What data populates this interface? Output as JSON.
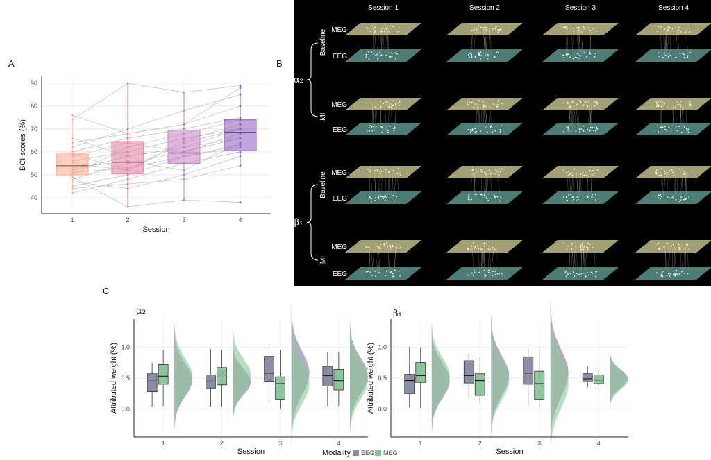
{
  "panels": {
    "a": "A",
    "b": "B",
    "c": "C"
  },
  "colors": {
    "s1": "#f7a58c",
    "s2": "#e07aa0",
    "s3": "#c67dc2",
    "s4": "#8a5bbd",
    "eeg": "#8b8fa3",
    "meg": "#8cc49b",
    "meg_dark": "#6a9e7a",
    "layer_meg": "#d7d79a",
    "layer_eeg": "#5f9c92"
  },
  "chart_data": [
    {
      "id": "A",
      "type": "box",
      "xlabel": "Session",
      "ylabel": "BCI scores (%)",
      "ylim": [
        33,
        93
      ],
      "yticks": [
        40,
        50,
        60,
        70,
        80,
        90
      ],
      "categories": [
        "1",
        "2",
        "3",
        "4"
      ],
      "boxes": [
        {
          "category": "1",
          "q1": 49.5,
          "median": 54,
          "q3": 59.5,
          "whisker_low": 42,
          "whisker_high": 76
        },
        {
          "category": "2",
          "q1": 50.5,
          "median": 55.5,
          "q3": 64.5,
          "whisker_low": 35.5,
          "whisker_high": 90
        },
        {
          "category": "3",
          "q1": 55,
          "median": 59.5,
          "q3": 69.5,
          "whisker_low": 39,
          "whisker_high": 86.5
        },
        {
          "category": "4",
          "q1": 60.5,
          "median": 68.5,
          "q3": 74,
          "whisker_low": 54,
          "whisker_high": 89
        }
      ],
      "subjects": [
        [
          52,
          58,
          62,
          70
        ],
        [
          48,
          55,
          60,
          66
        ],
        [
          60,
          66,
          70,
          75
        ],
        [
          45,
          50,
          58,
          62
        ],
        [
          55,
          52,
          65,
          72
        ],
        [
          50,
          62,
          68,
          74
        ],
        [
          42,
          48,
          55,
          60
        ],
        [
          58,
          64,
          60,
          68
        ],
        [
          53,
          56,
          52,
          64
        ],
        [
          62,
          70,
          78,
          85
        ],
        [
          47,
          44,
          50,
          58
        ],
        [
          56,
          60,
          66,
          70
        ],
        [
          74,
          90,
          86,
          89
        ],
        [
          64,
          68,
          72,
          80
        ],
        [
          51,
          53,
          58,
          63
        ],
        [
          49,
          36,
          39,
          38
        ],
        [
          59,
          52,
          64,
          70
        ],
        [
          76,
          68,
          72,
          88
        ],
        [
          44,
          46,
          48,
          54
        ],
        [
          66,
          58,
          62,
          66
        ]
      ]
    },
    {
      "id": "C-alpha2",
      "type": "box",
      "title": "α₂",
      "xlabel": "Session",
      "ylabel": "Attributed weight (%)",
      "ylim": [
        -0.45,
        1.45
      ],
      "yticks": [
        0.0,
        0.5,
        1.0
      ],
      "ytick_labels": [
        "0.0",
        "0.5",
        "1.0"
      ],
      "categories": [
        "1",
        "2",
        "3",
        "4"
      ],
      "series": [
        {
          "name": "EEG",
          "boxes": [
            {
              "q1": 0.28,
              "median": 0.47,
              "q3": 0.57,
              "whisker_low": 0.04,
              "whisker_high": 0.75
            },
            {
              "q1": 0.34,
              "median": 0.44,
              "q3": 0.55,
              "whisker_low": 0.04,
              "whisker_high": 0.97
            },
            {
              "q1": 0.45,
              "median": 0.58,
              "q3": 0.85,
              "whisker_low": 0.12,
              "whisker_high": 1.0
            },
            {
              "q1": 0.37,
              "median": 0.54,
              "q3": 0.69,
              "whisker_low": 0.05,
              "whisker_high": 0.92
            }
          ]
        },
        {
          "name": "MEG",
          "boxes": [
            {
              "q1": 0.4,
              "median": 0.53,
              "q3": 0.72,
              "whisker_low": 0.05,
              "whisker_high": 0.96
            },
            {
              "q1": 0.39,
              "median": 0.55,
              "q3": 0.67,
              "whisker_low": 0.04,
              "whisker_high": 0.96
            },
            {
              "q1": 0.16,
              "median": 0.41,
              "q3": 0.52,
              "whisker_low": 0.01,
              "whisker_high": 0.96
            },
            {
              "q1": 0.31,
              "median": 0.46,
              "q3": 0.64,
              "whisker_low": 0.05,
              "whisker_high": 0.92
            }
          ]
        }
      ]
    },
    {
      "id": "C-beta1",
      "type": "box",
      "title": "β₁",
      "xlabel": "Session",
      "ylabel": "Attributed weight (%)",
      "ylim": [
        -0.45,
        1.45
      ],
      "yticks": [
        0.0,
        0.5,
        1.0
      ],
      "ytick_labels": [
        "0.0",
        "0.5",
        "1.0"
      ],
      "categories": [
        "1",
        "2",
        "3",
        "4"
      ],
      "series": [
        {
          "name": "EEG",
          "boxes": [
            {
              "q1": 0.25,
              "median": 0.46,
              "q3": 0.56,
              "whisker_low": 0.03,
              "whisker_high": 1.0
            },
            {
              "q1": 0.42,
              "median": 0.54,
              "q3": 0.78,
              "whisker_low": 0.2,
              "whisker_high": 0.9
            },
            {
              "q1": 0.4,
              "median": 0.58,
              "q3": 0.84,
              "whisker_low": 0.06,
              "whisker_high": 0.97
            },
            {
              "q1": 0.44,
              "median": 0.49,
              "q3": 0.57,
              "whisker_low": 0.35,
              "whisker_high": 0.69
            }
          ]
        },
        {
          "name": "MEG",
          "boxes": [
            {
              "q1": 0.43,
              "median": 0.54,
              "q3": 0.75,
              "whisker_low": 0.02,
              "whisker_high": 0.99
            },
            {
              "q1": 0.22,
              "median": 0.46,
              "q3": 0.57,
              "whisker_low": 0.1,
              "whisker_high": 0.84
            },
            {
              "q1": 0.16,
              "median": 0.41,
              "q3": 0.61,
              "whisker_low": 0.04,
              "whisker_high": 0.96
            },
            {
              "q1": 0.41,
              "median": 0.47,
              "q3": 0.55,
              "whisker_low": 0.33,
              "whisker_high": 0.63
            }
          ]
        }
      ]
    }
  ],
  "legend": {
    "title": "Modality",
    "items": [
      {
        "name": "EEG",
        "color": "#8b8fa3"
      },
      {
        "name": "MEG",
        "color": "#8cc49b"
      }
    ]
  },
  "panel_b": {
    "sessions": [
      "Session 1",
      "Session 2",
      "Session 3",
      "Session 4"
    ],
    "layers": [
      "MEG",
      "EEG"
    ],
    "conditions": [
      "Baseline",
      "MI"
    ],
    "bands": [
      "α₂",
      "β₁"
    ]
  }
}
